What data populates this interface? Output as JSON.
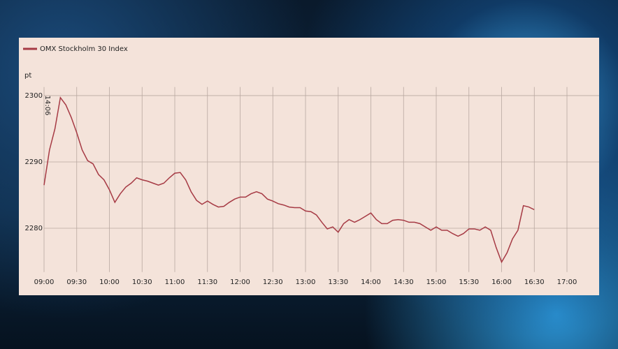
{
  "chart_data": {
    "type": "line",
    "legend": "top-left",
    "y_label": "pt",
    "annotation": "14:06",
    "grid": true,
    "x": [
      "09:00",
      "09:05",
      "09:10",
      "09:15",
      "09:20",
      "09:25",
      "09:30",
      "09:35",
      "09:40",
      "09:45",
      "09:50",
      "09:55",
      "10:00",
      "10:05",
      "10:10",
      "10:15",
      "10:20",
      "10:25",
      "10:30",
      "10:35",
      "10:40",
      "10:45",
      "10:50",
      "10:55",
      "11:00",
      "11:05",
      "11:10",
      "11:15",
      "11:20",
      "11:25",
      "11:30",
      "11:35",
      "11:40",
      "11:45",
      "11:50",
      "11:55",
      "12:00",
      "12:05",
      "12:10",
      "12:15",
      "12:20",
      "12:25",
      "12:30",
      "12:35",
      "12:40",
      "12:45",
      "12:50",
      "12:55",
      "13:00",
      "13:05",
      "13:10",
      "13:15",
      "13:20",
      "13:25",
      "13:30",
      "13:35",
      "13:40",
      "13:45",
      "13:50",
      "13:55",
      "14:00",
      "14:05",
      "14:10",
      "14:15",
      "14:20",
      "14:25",
      "14:30",
      "14:35",
      "14:40",
      "14:45",
      "14:50",
      "14:55",
      "15:00",
      "15:05",
      "15:10",
      "15:15",
      "15:20",
      "15:25",
      "15:30",
      "15:35",
      "15:40",
      "15:45",
      "15:50",
      "15:55",
      "16:00",
      "16:05",
      "16:10",
      "16:15",
      "16:20",
      "16:25",
      "16:30"
    ],
    "series": [
      {
        "name": "OMX Stockholm 30 Index",
        "color": "#a63a44",
        "values": [
          2286.5,
          2291.8,
          2295,
          2299.7,
          2298.6,
          2296.7,
          2294.4,
          2291.8,
          2290.2,
          2289.7,
          2288.1,
          2287.3,
          2285.8,
          2283.9,
          2285.2,
          2286.2,
          2286.8,
          2287.6,
          2287.3,
          2287.1,
          2286.8,
          2286.5,
          2286.8,
          2287.6,
          2288.3,
          2288.4,
          2287.3,
          2285.5,
          2284.2,
          2283.6,
          2284.1,
          2283.6,
          2283.2,
          2283.3,
          2283.9,
          2284.4,
          2284.7,
          2284.7,
          2285.2,
          2285.5,
          2285.2,
          2284.4,
          2284.1,
          2283.7,
          2283.5,
          2283.2,
          2283.1,
          2283.1,
          2282.6,
          2282.5,
          2282.0,
          2280.9,
          2279.9,
          2280.2,
          2279.4,
          2280.7,
          2281.3,
          2280.9,
          2281.3,
          2281.8,
          2282.3,
          2281.3,
          2280.7,
          2280.7,
          2281.2,
          2281.3,
          2281.2,
          2280.9,
          2280.9,
          2280.7,
          2280.2,
          2279.7,
          2280.2,
          2279.7,
          2279.7,
          2279.2,
          2278.8,
          2279.2,
          2279.9,
          2279.9,
          2279.7,
          2280.2,
          2279.7,
          2277.1,
          2274.9,
          2276.3,
          2278.4,
          2279.7,
          2283.4,
          2283.2,
          2282.8
        ]
      }
    ],
    "xlim": [
      "09:00",
      "17:00"
    ],
    "xticks": [
      "09:00",
      "09:30",
      "10:00",
      "10:30",
      "11:00",
      "11:30",
      "12:00",
      "12:30",
      "13:00",
      "13:30",
      "14:00",
      "14:30",
      "15:00",
      "15:30",
      "16:00",
      "16:30",
      "17:00"
    ],
    "ylim": [
      2273.4,
      2301.3
    ],
    "yticks": [
      2280,
      2290,
      2300
    ]
  }
}
